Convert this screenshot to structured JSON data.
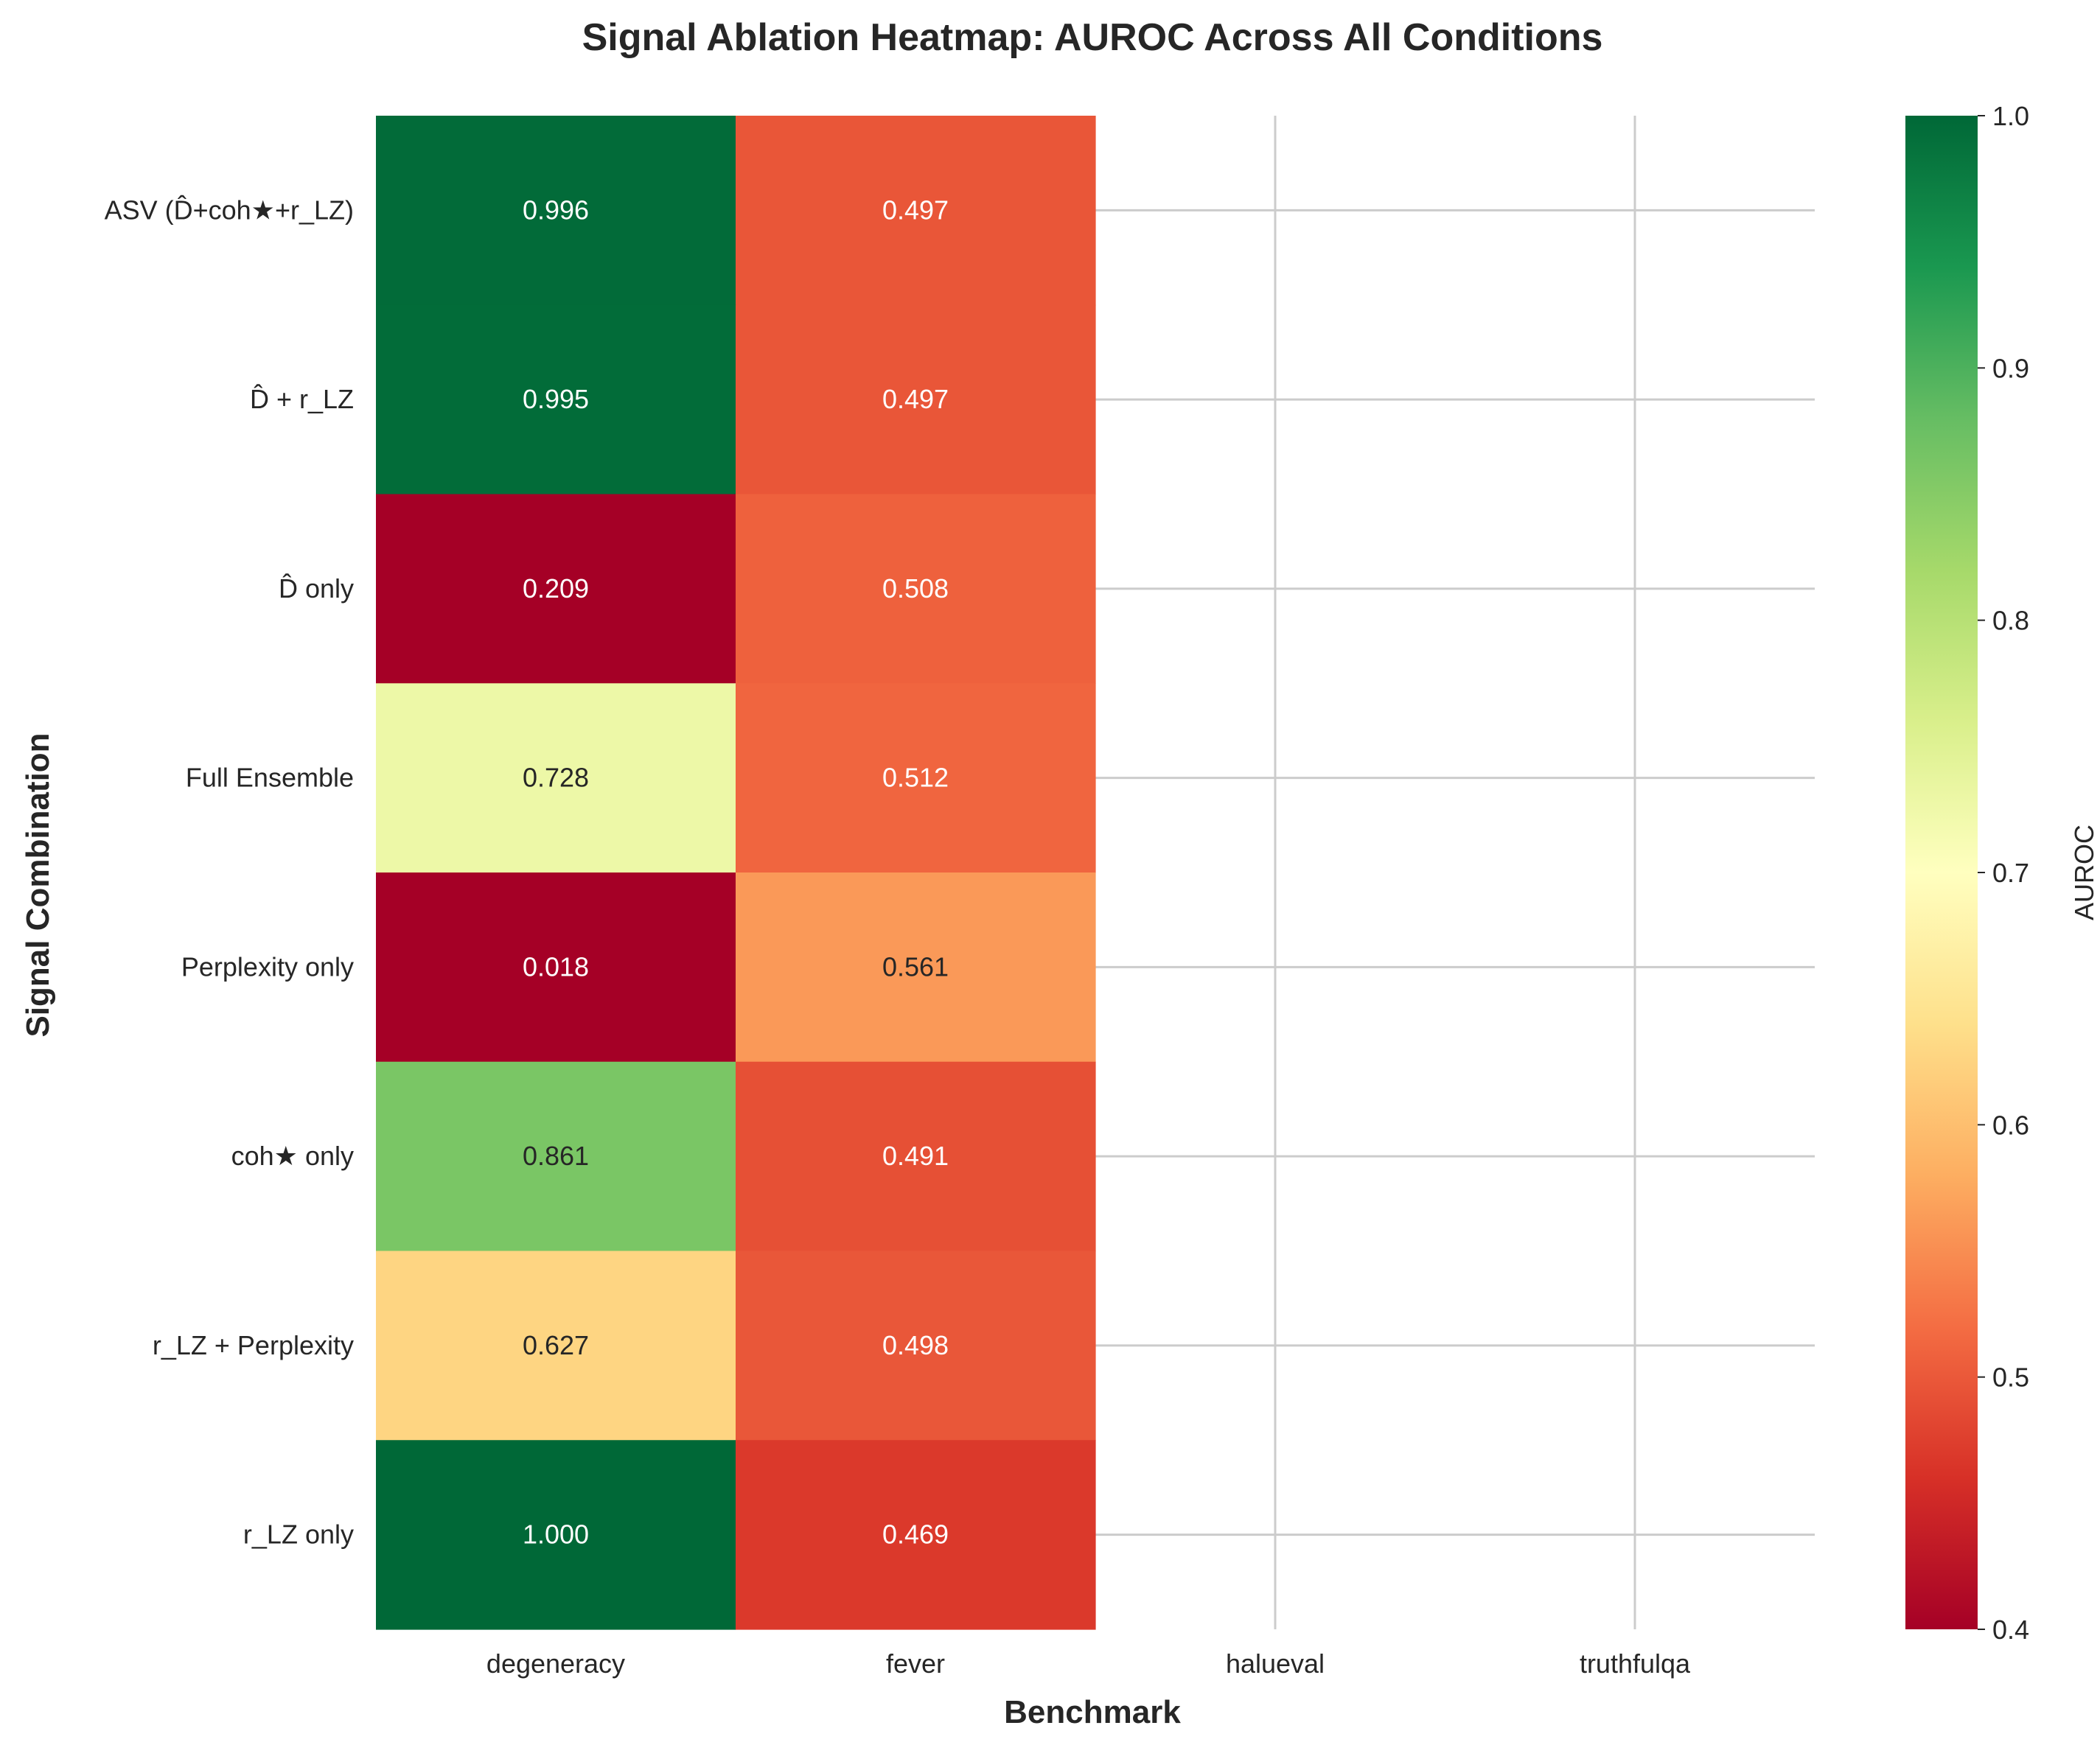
{
  "chart_data": {
    "type": "heatmap",
    "title": "Signal Ablation Heatmap: AUROC Across All Conditions",
    "xlabel": "Benchmark",
    "ylabel": "Signal Combination",
    "x_categories": [
      "degeneracy",
      "fever",
      "halueval",
      "truthfulqa"
    ],
    "y_categories": [
      "ASV (D̂+coh★+r_LZ)",
      "D̂ + r_LZ",
      "D̂ only",
      "Full Ensemble",
      "Perplexity only",
      "coh★ only",
      "r_LZ + Perplexity",
      "r_LZ only"
    ],
    "values": [
      [
        0.996,
        0.497,
        null,
        null
      ],
      [
        0.995,
        0.497,
        null,
        null
      ],
      [
        0.209,
        0.508,
        null,
        null
      ],
      [
        0.728,
        0.512,
        null,
        null
      ],
      [
        0.018,
        0.561,
        null,
        null
      ],
      [
        0.861,
        0.491,
        null,
        null
      ],
      [
        0.627,
        0.498,
        null,
        null
      ],
      [
        1.0,
        0.469,
        null,
        null
      ]
    ],
    "value_format": "0.000",
    "colormap": "RdYlGn",
    "vmin": 0.4,
    "vmax": 1.0,
    "colorbar": {
      "label": "AUROC",
      "ticks": [
        "0.4",
        "0.5",
        "0.6",
        "0.7",
        "0.8",
        "0.9",
        "1.0"
      ]
    },
    "grid": true
  }
}
